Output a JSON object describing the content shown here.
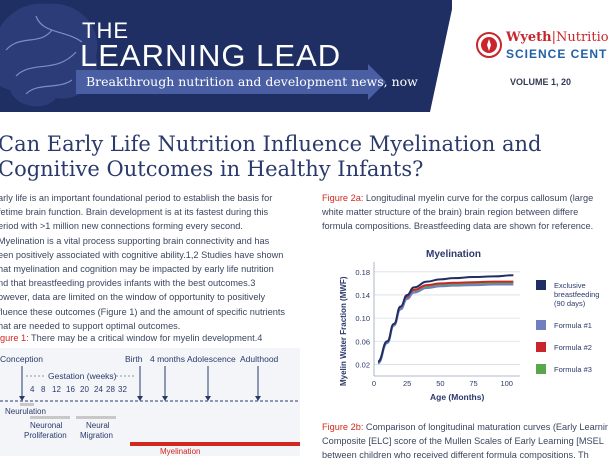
{
  "header": {
    "the": "THE",
    "learning_lead": "LEARNING LEAD",
    "tagline": "Breakthrough nutrition and development news, now",
    "brand_name": "Wyeth",
    "brand_nutrition": "Nutritio",
    "brand_science": "SCIENCE CENTE",
    "volume": "VOLUME 1, 20"
  },
  "article": {
    "title": "Can Early Life Nutrition Influence Myelination and Cognitive Outcomes in Healthy Infants?",
    "intro_lines": [
      "arly life is an important foundational period to establish the basis for",
      "fetime brain function. Brain development is at its fastest during this",
      "eriod with >1 million new connections forming every second.",
      "Myelination is a vital process supporting brain connectivity and has",
      "een positively associated with cognitive ability.1,2 Studies have shown",
      "hat myelination and cognition may be impacted by early life nutrition",
      "nd that breastfeeding provides infants with the best outcomes.3",
      "owever, data are limited on the window of opportunity to positively",
      "fluence these outcomes (Figure 1) and the amount of specific nutrients",
      "hat are needed to support optimal outcomes."
    ],
    "figure1_label": "igure 1:",
    "figure1_text": " There may be a critical window for myelin development.4",
    "figure2a_label": "Figure 2a:",
    "figure2a_lines": [
      " Longitudinal myelin curve for the corpus callosum (large",
      "white matter structure of the brain) brain region between differe",
      "formula compositions. Breastfeeding data are shown for reference."
    ],
    "figure2b_label": "Figure 2b:",
    "figure2b_lines": [
      " Comparison of longitudinal maturation curves (Early Learnin",
      "Composite [ELC] score of the Mullen Scales of Early Learning [MSEL",
      "between children who received different formula compositions. Th"
    ]
  },
  "timeline": {
    "milestones": [
      "Conception",
      "Birth",
      "4 months",
      "Adolescence",
      "Adulthood"
    ],
    "gestation_label": "Gestation (weeks)",
    "weeks": [
      "4",
      "8",
      "12",
      "16",
      "20",
      "24",
      "28",
      "32"
    ],
    "processes": [
      "Neurulation",
      "Neuronal",
      "Proliferation",
      "Neural",
      "Migration",
      "Myelination"
    ],
    "colors": {
      "bar": "#c8c8c8",
      "myelination": "#d0281f",
      "arrow": "#2b3a6b"
    }
  },
  "chart_data": {
    "type": "line",
    "title": "Myelination",
    "xlabel": "Age (Months)",
    "ylabel": "Myelin Water Fraction (MWF)",
    "xlim": [
      0,
      110
    ],
    "ylim": [
      0,
      0.19
    ],
    "xticks": [
      "0",
      "25",
      "50",
      "75",
      "100"
    ],
    "yticks": [
      "0.02",
      "0.06",
      "0.10",
      "0.14",
      "0.18"
    ],
    "legend_position": "right",
    "series": [
      {
        "name": "Exclusive breastfeeding (90 days)",
        "legend_lines": [
          "Exclusive",
          "breastfeeding",
          "(90 days)"
        ],
        "color": "#1f2f63",
        "x": [
          3,
          10,
          15,
          20,
          25,
          30,
          40,
          50,
          60,
          75,
          90,
          105
        ],
        "y": [
          0.025,
          0.06,
          0.09,
          0.12,
          0.14,
          0.153,
          0.163,
          0.167,
          0.169,
          0.171,
          0.172,
          0.174
        ]
      },
      {
        "name": "Formula #1",
        "legend_lines": [
          "Formula #1"
        ],
        "color": "#6f7fbf",
        "x": [
          3,
          10,
          15,
          20,
          25,
          30,
          40,
          50,
          60,
          75,
          90,
          105
        ],
        "y": [
          0.022,
          0.057,
          0.087,
          0.115,
          0.133,
          0.144,
          0.152,
          0.155,
          0.156,
          0.157,
          0.158,
          0.158
        ]
      },
      {
        "name": "Formula #2",
        "legend_lines": [
          "Formula #2"
        ],
        "color": "#c8262c",
        "x": [
          3,
          10,
          15,
          20,
          25,
          30,
          40,
          50,
          60,
          75,
          90,
          105
        ],
        "y": [
          0.024,
          0.059,
          0.089,
          0.118,
          0.137,
          0.149,
          0.157,
          0.16,
          0.161,
          0.162,
          0.163,
          0.163
        ]
      },
      {
        "name": "Formula #3",
        "legend_lines": [
          "Formula #3"
        ],
        "color": "#5aa64a",
        "x": [
          3,
          10,
          15,
          20,
          25,
          30,
          40,
          50,
          60,
          75,
          90,
          105
        ],
        "y": [
          0.023,
          0.058,
          0.088,
          0.117,
          0.135,
          0.147,
          0.155,
          0.158,
          0.159,
          0.16,
          0.161,
          0.161
        ]
      }
    ]
  }
}
